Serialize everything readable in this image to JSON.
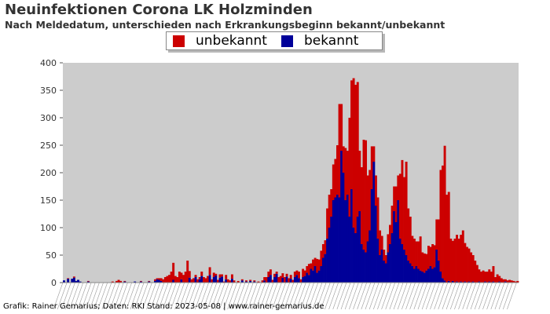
{
  "header": {
    "title": "Neuinfektionen Corona LK Holzminden",
    "subtitle": "Nach Meldedatum, unterschieden nach Erkrankungsbeginn bekannt/unbekannt"
  },
  "legend": [
    {
      "label": "unbekannt",
      "color": "#cc0000"
    },
    {
      "label": "bekannt",
      "color": "#000099"
    }
  ],
  "footer": "Grafik: Rainer Gemarius; Daten: RKI Stand: 2023-05-08 | www.rainer-gemarius.de",
  "colors": {
    "plot_background": "#cccccc",
    "unbekannt": "#cc0000",
    "bekannt": "#000099"
  },
  "chart_data": {
    "type": "bar",
    "stacked": true,
    "title": "Neuinfektionen Corona LK Holzminden",
    "subtitle": "Nach Meldedatum, unterschieden nach Erkrankungsbeginn bekannt/unbekannt",
    "xlabel": "",
    "ylabel": "",
    "ylim": [
      0,
      400
    ],
    "yticks": [
      0,
      50,
      100,
      150,
      200,
      250,
      300,
      350,
      400
    ],
    "grid": false,
    "legend_position": "top-center",
    "x_unit": "week index (date labels illegible)",
    "series": [
      {
        "name": "bekannt",
        "color": "#000099",
        "points": [
          [
            0,
            4
          ],
          [
            2,
            7
          ],
          [
            4,
            7
          ],
          [
            5,
            9
          ],
          [
            6,
            3
          ],
          [
            7,
            5
          ],
          [
            8,
            2
          ],
          [
            12,
            2
          ],
          [
            30,
            2
          ],
          [
            35,
            2
          ],
          [
            38,
            2
          ],
          [
            42,
            2
          ],
          [
            45,
            3
          ],
          [
            46,
            6
          ],
          [
            47,
            5
          ],
          [
            48,
            3
          ],
          [
            54,
            5
          ],
          [
            58,
            6
          ],
          [
            62,
            9
          ],
          [
            65,
            10
          ],
          [
            67,
            6
          ],
          [
            68,
            12
          ],
          [
            72,
            14
          ],
          [
            74,
            10
          ],
          [
            75,
            13
          ],
          [
            77,
            9
          ],
          [
            78,
            11
          ],
          [
            80,
            6
          ],
          [
            83,
            7
          ],
          [
            88,
            4
          ],
          [
            90,
            2
          ],
          [
            92,
            3
          ],
          [
            94,
            2
          ],
          [
            99,
            4
          ],
          [
            101,
            10
          ],
          [
            102,
            14
          ],
          [
            104,
            10
          ],
          [
            105,
            16
          ],
          [
            108,
            9
          ],
          [
            110,
            11
          ],
          [
            112,
            7
          ],
          [
            114,
            10
          ],
          [
            115,
            14
          ],
          [
            116,
            8
          ],
          [
            118,
            10
          ],
          [
            119,
            12
          ],
          [
            120,
            18
          ],
          [
            121,
            14
          ],
          [
            122,
            25
          ],
          [
            123,
            22
          ],
          [
            124,
            30
          ],
          [
            125,
            18
          ],
          [
            126,
            22
          ],
          [
            127,
            30
          ],
          [
            128,
            45
          ],
          [
            129,
            52
          ],
          [
            130,
            80
          ],
          [
            131,
            100
          ],
          [
            132,
            120
          ],
          [
            133,
            150
          ],
          [
            134,
            155
          ],
          [
            135,
            160
          ],
          [
            136,
            155
          ],
          [
            137,
            240
          ],
          [
            138,
            200
          ],
          [
            139,
            150
          ],
          [
            140,
            160
          ],
          [
            141,
            120
          ],
          [
            142,
            170
          ],
          [
            143,
            100
          ],
          [
            144,
            90
          ],
          [
            145,
            120
          ],
          [
            146,
            130
          ],
          [
            147,
            70
          ],
          [
            148,
            60
          ],
          [
            149,
            55
          ],
          [
            150,
            75
          ],
          [
            151,
            95
          ],
          [
            152,
            170
          ],
          [
            153,
            220
          ],
          [
            154,
            140
          ],
          [
            155,
            80
          ],
          [
            156,
            50
          ],
          [
            157,
            60
          ],
          [
            158,
            40
          ],
          [
            159,
            35
          ],
          [
            160,
            55
          ],
          [
            161,
            70
          ],
          [
            162,
            90
          ],
          [
            163,
            130
          ],
          [
            164,
            110
          ],
          [
            165,
            150
          ],
          [
            166,
            80
          ],
          [
            167,
            70
          ],
          [
            168,
            60
          ],
          [
            169,
            50
          ],
          [
            170,
            40
          ],
          [
            171,
            35
          ],
          [
            172,
            30
          ],
          [
            173,
            25
          ],
          [
            174,
            30
          ],
          [
            175,
            25
          ],
          [
            176,
            22
          ],
          [
            177,
            20
          ],
          [
            178,
            18
          ],
          [
            179,
            22
          ],
          [
            180,
            25
          ],
          [
            181,
            30
          ],
          [
            182,
            25
          ],
          [
            183,
            28
          ],
          [
            184,
            60
          ],
          [
            185,
            40
          ],
          [
            186,
            20
          ],
          [
            187,
            8
          ],
          [
            188,
            4
          ],
          [
            190,
            3
          ],
          [
            192,
            3
          ],
          [
            194,
            2
          ],
          [
            196,
            2
          ],
          [
            198,
            2
          ],
          [
            200,
            2
          ],
          [
            202,
            2
          ],
          [
            205,
            2
          ],
          [
            208,
            2
          ],
          [
            210,
            2
          ],
          [
            212,
            2
          ],
          [
            215,
            2
          ],
          [
            218,
            2
          ]
        ]
      },
      {
        "name": "unbekannt",
        "color": "#cc0000",
        "points": [
          [
            0,
            0
          ],
          [
            2,
            1
          ],
          [
            4,
            0
          ],
          [
            5,
            2
          ],
          [
            6,
            0
          ],
          [
            8,
            0
          ],
          [
            12,
            1
          ],
          [
            24,
            2
          ],
          [
            26,
            3
          ],
          [
            27,
            5
          ],
          [
            28,
            3
          ],
          [
            30,
            1
          ],
          [
            35,
            0
          ],
          [
            38,
            1
          ],
          [
            42,
            1
          ],
          [
            45,
            3
          ],
          [
            46,
            2
          ],
          [
            47,
            3
          ],
          [
            48,
            5
          ],
          [
            49,
            6
          ],
          [
            50,
            10
          ],
          [
            51,
            12
          ],
          [
            52,
            14
          ],
          [
            53,
            20
          ],
          [
            54,
            31
          ],
          [
            55,
            12
          ],
          [
            56,
            10
          ],
          [
            57,
            20
          ],
          [
            58,
            12
          ],
          [
            59,
            14
          ],
          [
            60,
            20
          ],
          [
            61,
            40
          ],
          [
            62,
            12
          ],
          [
            63,
            6
          ],
          [
            64,
            8
          ],
          [
            65,
            4
          ],
          [
            66,
            6
          ],
          [
            67,
            4
          ],
          [
            68,
            8
          ],
          [
            69,
            10
          ],
          [
            70,
            8
          ],
          [
            71,
            12
          ],
          [
            72,
            14
          ],
          [
            73,
            6
          ],
          [
            74,
            8
          ],
          [
            75,
            3
          ],
          [
            76,
            5
          ],
          [
            77,
            6
          ],
          [
            78,
            4
          ],
          [
            79,
            2
          ],
          [
            80,
            8
          ],
          [
            81,
            6
          ],
          [
            82,
            4
          ],
          [
            83,
            8
          ],
          [
            84,
            4
          ],
          [
            86,
            3
          ],
          [
            88,
            2
          ],
          [
            90,
            2
          ],
          [
            92,
            2
          ],
          [
            94,
            2
          ],
          [
            96,
            2
          ],
          [
            98,
            4
          ],
          [
            99,
            6
          ],
          [
            100,
            10
          ],
          [
            101,
            10
          ],
          [
            102,
            10
          ],
          [
            103,
            5
          ],
          [
            104,
            6
          ],
          [
            105,
            4
          ],
          [
            106,
            10
          ],
          [
            107,
            12
          ],
          [
            108,
            8
          ],
          [
            109,
            10
          ],
          [
            110,
            5
          ],
          [
            111,
            8
          ],
          [
            112,
            7
          ],
          [
            113,
            5
          ],
          [
            114,
            10
          ],
          [
            115,
            8
          ],
          [
            116,
            12
          ],
          [
            117,
            6
          ],
          [
            118,
            15
          ],
          [
            119,
            10
          ],
          [
            120,
            12
          ],
          [
            121,
            20
          ],
          [
            122,
            10
          ],
          [
            123,
            20
          ],
          [
            124,
            15
          ],
          [
            125,
            25
          ],
          [
            126,
            20
          ],
          [
            127,
            28
          ],
          [
            128,
            25
          ],
          [
            129,
            25
          ],
          [
            130,
            55
          ],
          [
            131,
            60
          ],
          [
            132,
            50
          ],
          [
            133,
            65
          ],
          [
            134,
            70
          ],
          [
            135,
            90
          ],
          [
            136,
            170
          ],
          [
            137,
            85
          ],
          [
            138,
            48
          ],
          [
            139,
            95
          ],
          [
            140,
            80
          ],
          [
            141,
            180
          ],
          [
            142,
            198
          ],
          [
            143,
            272
          ],
          [
            144,
            270
          ],
          [
            145,
            245
          ],
          [
            146,
            110
          ],
          [
            147,
            140
          ],
          [
            148,
            200
          ],
          [
            149,
            204
          ],
          [
            150,
            120
          ],
          [
            151,
            110
          ],
          [
            152,
            78
          ],
          [
            153,
            28
          ],
          [
            154,
            55
          ],
          [
            155,
            75
          ],
          [
            156,
            45
          ],
          [
            157,
            25
          ],
          [
            158,
            20
          ],
          [
            159,
            15
          ],
          [
            160,
            33
          ],
          [
            161,
            35
          ],
          [
            162,
            50
          ],
          [
            163,
            45
          ],
          [
            164,
            65
          ],
          [
            165,
            45
          ],
          [
            166,
            118
          ],
          [
            167,
            153
          ],
          [
            168,
            132
          ],
          [
            169,
            170
          ],
          [
            170,
            95
          ],
          [
            171,
            85
          ],
          [
            172,
            55
          ],
          [
            173,
            55
          ],
          [
            174,
            45
          ],
          [
            175,
            50
          ],
          [
            176,
            62
          ],
          [
            177,
            35
          ],
          [
            178,
            35
          ],
          [
            179,
            30
          ],
          [
            180,
            42
          ],
          [
            181,
            35
          ],
          [
            182,
            45
          ],
          [
            183,
            40
          ],
          [
            184,
            55
          ],
          [
            185,
            75
          ],
          [
            186,
            185
          ],
          [
            187,
            205
          ],
          [
            188,
            245
          ],
          [
            189,
            160
          ],
          [
            190,
            162
          ],
          [
            191,
            80
          ],
          [
            192,
            73
          ],
          [
            193,
            80
          ],
          [
            194,
            85
          ],
          [
            195,
            80
          ],
          [
            196,
            85
          ],
          [
            197,
            95
          ],
          [
            198,
            70
          ],
          [
            199,
            65
          ],
          [
            200,
            60
          ],
          [
            201,
            55
          ],
          [
            202,
            48
          ],
          [
            203,
            40
          ],
          [
            204,
            32
          ],
          [
            205,
            22
          ],
          [
            206,
            20
          ],
          [
            207,
            22
          ],
          [
            208,
            18
          ],
          [
            209,
            20
          ],
          [
            210,
            22
          ],
          [
            211,
            20
          ],
          [
            212,
            28
          ],
          [
            213,
            10
          ],
          [
            214,
            15
          ],
          [
            215,
            10
          ],
          [
            216,
            8
          ],
          [
            217,
            6
          ],
          [
            218,
            4
          ],
          [
            219,
            4
          ],
          [
            220,
            5
          ],
          [
            221,
            4
          ],
          [
            222,
            3
          ],
          [
            223,
            2
          ],
          [
            224,
            3
          ]
        ]
      }
    ]
  }
}
